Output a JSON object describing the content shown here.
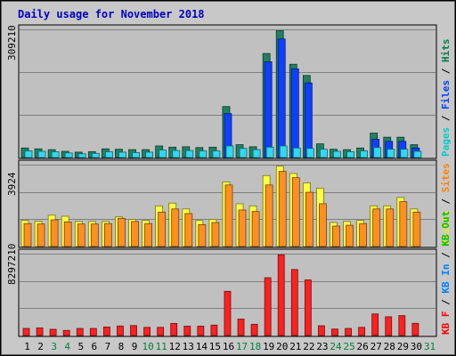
{
  "chart_data": {
    "type": "bar",
    "title": "Daily usage for November 2018",
    "days": [
      "1",
      "2",
      "3",
      "4",
      "5",
      "6",
      "7",
      "8",
      "9",
      "10",
      "11",
      "12",
      "13",
      "14",
      "15",
      "16",
      "17",
      "18",
      "19",
      "20",
      "21",
      "22",
      "23",
      "24",
      "25",
      "26",
      "27",
      "28",
      "29",
      "30",
      "31"
    ],
    "weekend_days": [
      "3",
      "4",
      "10",
      "11",
      "17",
      "18",
      "24",
      "25",
      "31"
    ],
    "panels": [
      {
        "id": "pages-files-hits",
        "ymax_label": "309210",
        "ymax": 309210,
        "right_label": [
          {
            "text": "Pages",
            "color": "#00cccc"
          },
          {
            "text": "Files",
            "color": "#0040ff"
          },
          {
            "text": "Hits",
            "color": "#008040"
          }
        ],
        "separator": " / ",
        "series": [
          {
            "name": "Hits",
            "color": "#208060",
            "values": [
              23000,
              21000,
              19000,
              15000,
              13000,
              14000,
              21000,
              20000,
              19000,
              19000,
              28000,
              25000,
              26000,
              24000,
              25000,
              123000,
              31000,
              26000,
              251000,
              306000,
              225000,
              198000,
              33000,
              20000,
              19000,
              23000,
              59000,
              49000,
              49000,
              31000,
              0
            ]
          },
          {
            "name": "Files",
            "color": "#1040ff",
            "values": [
              0,
              0,
              0,
              0,
              0,
              0,
              0,
              0,
              0,
              0,
              0,
              0,
              0,
              0,
              0,
              106000,
              0,
              0,
              231000,
              286000,
              214000,
              180000,
              0,
              0,
              0,
              0,
              44000,
              39000,
              39000,
              23000,
              0
            ]
          },
          {
            "name": "Pages",
            "color": "#30d8f0",
            "values": [
              16000,
              15000,
              14000,
              11000,
              9000,
              10000,
              14000,
              13000,
              12000,
              13000,
              18000,
              17000,
              17000,
              16000,
              16000,
              28000,
              22000,
              19000,
              25000,
              28000,
              23000,
              22000,
              20000,
              15000,
              14000,
              16000,
              24000,
              20000,
              20000,
              15000,
              0
            ]
          }
        ]
      },
      {
        "id": "visits-sites",
        "ymax_label": "3924",
        "ymax": 3924,
        "right_label": [
          {
            "text": "Visits",
            "color": "#f0f000"
          },
          {
            "text": "Sites",
            "color": "#ff8000"
          }
        ],
        "separator": " / ",
        "series": [
          {
            "name": "Visits",
            "color": "#ffff40",
            "values": [
              1250,
              1210,
              1500,
              1450,
              1200,
              1200,
              1200,
              1420,
              1300,
              1250,
              1950,
              2080,
              1800,
              1250,
              1300,
              3100,
              2050,
              1950,
              3400,
              3850,
              3500,
              3050,
              2800,
              1150,
              1200,
              1250,
              1950,
              1950,
              2350,
              1800,
              0
            ]
          },
          {
            "name": "Sites",
            "color": "#ff9020",
            "values": [
              1100,
              1080,
              1280,
              1180,
              1080,
              1080,
              1100,
              1350,
              1200,
              1100,
              1650,
              1800,
              1580,
              1050,
              1150,
              2950,
              1750,
              1680,
              2950,
              3600,
              3300,
              2600,
              2050,
              980,
              1020,
              1100,
              1800,
              1800,
              2150,
              1650,
              0
            ]
          }
        ]
      },
      {
        "id": "kbin-kbout-kbf",
        "ymax_label": "8297210",
        "ymax": 8297210,
        "right_label": [
          {
            "text": "KB F",
            "color": "#ff0000"
          },
          {
            "text": "KB In",
            "color": "#0080ff"
          },
          {
            "text": "KB Out",
            "color": "#00c000"
          }
        ],
        "separator": " / ",
        "series": [
          {
            "name": "KB F",
            "color": "#ff2020",
            "values": [
              720000,
              770000,
              630000,
              520000,
              720000,
              720000,
              860000,
              970000,
              1010000,
              830000,
              830000,
              1230000,
              950000,
              950000,
              1060000,
              4480000,
              1670000,
              1140000,
              5860000,
              8180000,
              6690000,
              5640000,
              990000,
              660000,
              720000,
              830000,
              2190000,
              1900000,
              2020000,
              1240000,
              0
            ]
          }
        ]
      }
    ]
  }
}
